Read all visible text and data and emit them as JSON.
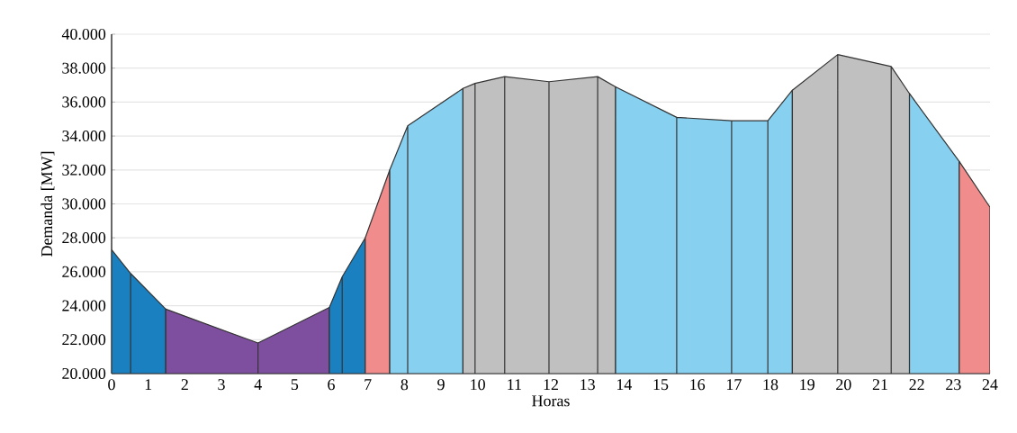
{
  "chart_data": {
    "type": "area",
    "xlabel": "Horas",
    "ylabel": "Demanda [MW]",
    "xlim": [
      0,
      24
    ],
    "xticks": [
      0,
      1,
      2,
      3,
      4,
      5,
      6,
      7,
      8,
      9,
      10,
      11,
      12,
      13,
      14,
      15,
      16,
      17,
      18,
      19,
      20,
      21,
      22,
      23,
      24
    ],
    "ylim": [
      20000,
      40000
    ],
    "yticks": [
      {
        "value": 20000,
        "label": "20.000"
      },
      {
        "value": 22000,
        "label": "22.000"
      },
      {
        "value": 24000,
        "label": "24.000"
      },
      {
        "value": 26000,
        "label": "26.000"
      },
      {
        "value": 28000,
        "label": "28.000"
      },
      {
        "value": 30000,
        "label": "30.000"
      },
      {
        "value": 32000,
        "label": "32.000"
      },
      {
        "value": 34000,
        "label": "34.000"
      },
      {
        "value": 36000,
        "label": "36.000"
      },
      {
        "value": 38000,
        "label": "38.000"
      },
      {
        "value": 40000,
        "label": "40.000"
      }
    ],
    "grid": "y",
    "series": [
      {
        "color": "#1a80c0",
        "x": [
          0,
          0.52,
          1.48
        ],
        "values": [
          27300,
          25900,
          23800
        ]
      },
      {
        "color": "#7f4f9f",
        "x": [
          1.48,
          4,
          5.95
        ],
        "values": [
          23800,
          21800,
          23900
        ]
      },
      {
        "color": "#1a80c0",
        "x": [
          5.95,
          6.3,
          6.93
        ],
        "values": [
          23900,
          25700,
          28000
        ]
      },
      {
        "color": "#f08c8c",
        "x": [
          6.93,
          7.6
        ],
        "values": [
          28000,
          32000
        ]
      },
      {
        "color": "#88d0f0",
        "x": [
          7.6,
          8.09,
          9.6
        ],
        "values": [
          32000,
          34600,
          36800
        ]
      },
      {
        "color": "#c0c0c0",
        "x": [
          9.6,
          9.93,
          10.74,
          11.95,
          13.28,
          13.77
        ],
        "values": [
          36800,
          37100,
          37500,
          37200,
          37500,
          36900
        ]
      },
      {
        "color": "#88d0f0",
        "x": [
          13.77,
          15.44,
          16.94,
          17.93,
          18.6
        ],
        "values": [
          36900,
          35100,
          34900,
          34900,
          36700
        ]
      },
      {
        "color": "#c0c0c0",
        "x": [
          18.6,
          19.84,
          21.3,
          21.8
        ],
        "values": [
          36700,
          38800,
          38100,
          36500
        ]
      },
      {
        "color": "#88d0f0",
        "x": [
          21.8,
          23.16
        ],
        "values": [
          36500,
          32500
        ]
      },
      {
        "color": "#f08c8c",
        "x": [
          23.16,
          24
        ],
        "values": [
          32500,
          29800
        ]
      }
    ]
  }
}
